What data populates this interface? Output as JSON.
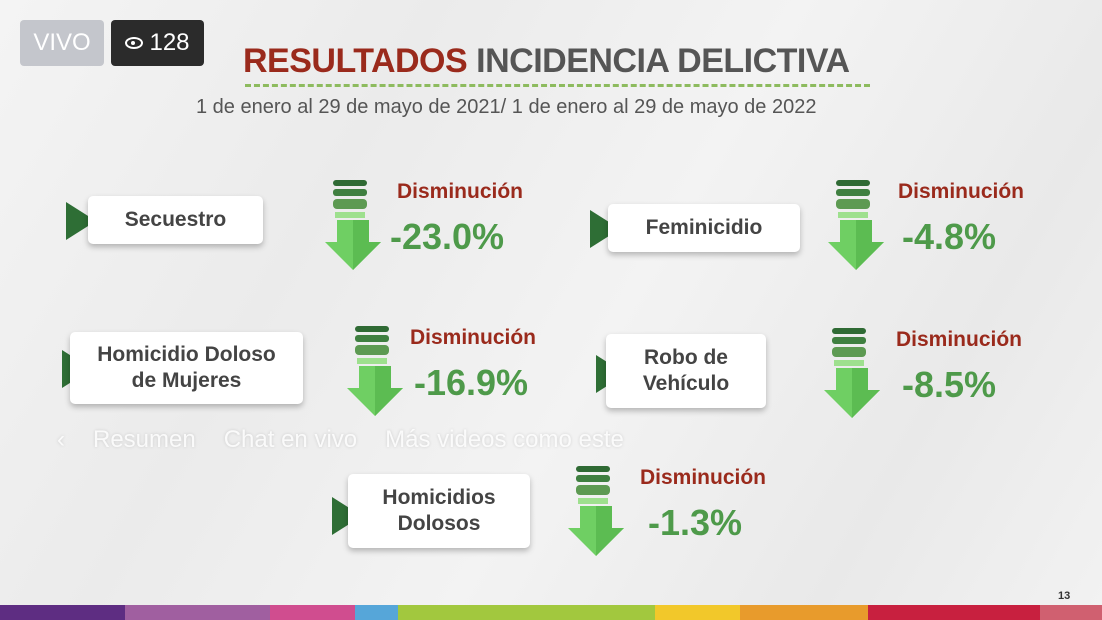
{
  "live": {
    "label": "VIVO",
    "viewers": "128",
    "viewer_icon": "eye-icon"
  },
  "slide": {
    "title_part1": "RESULTADOS",
    "title_part2": "INCIDENCIA DELICTIVA",
    "subtitle": "1 de enero al 29 de mayo de 2021/ 1 de enero al 29 de mayo de 2022",
    "page_number": "13",
    "items": [
      {
        "label": "Secuestro",
        "status": "Disminución",
        "value": "-23.0%"
      },
      {
        "label": "Feminicidio",
        "status": "Disminución",
        "value": "-4.8%"
      },
      {
        "label": "Homicidio Doloso de Mujeres",
        "status": "Disminución",
        "value": "-16.9%"
      },
      {
        "label": "Robo de Vehículo",
        "status": "Disminución",
        "value": "-8.5%"
      },
      {
        "label": "Homicidios Dolosos",
        "status": "Disminución",
        "value": "-1.3%"
      }
    ],
    "colors": {
      "title_red": "#9a2a1c",
      "value_green": "#4e9a4a",
      "arrow_green": "#6fcf63",
      "bullet": "#2e6e35"
    },
    "color_bar": [
      "#5e2d82",
      "#a05fa0",
      "#d04d8f",
      "#56a6d9",
      "#a2c83e",
      "#f2c82a",
      "#e89b2c",
      "#c8203f",
      "#d06070"
    ]
  },
  "player_overlay": {
    "back_icon": "chevron-left-icon",
    "tabs": [
      "Resumen",
      "Chat en vivo",
      "Más videos como este"
    ]
  }
}
